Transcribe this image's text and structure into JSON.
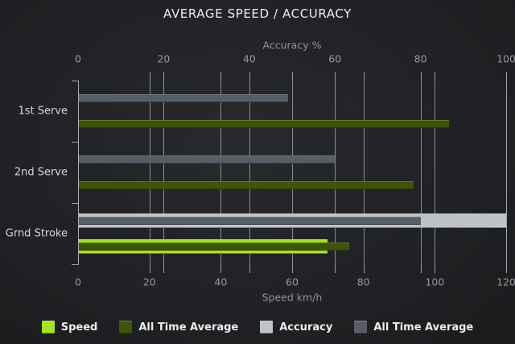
{
  "title": "AVERAGE SPEED / ACCURACY",
  "chart_data": {
    "type": "bar",
    "orientation": "horizontal",
    "title": "AVERAGE SPEED / ACCURACY",
    "categories": [
      "1st Serve",
      "2nd Serve",
      "Grnd Stroke"
    ],
    "axes": {
      "top": {
        "label": "Accuracy %",
        "min": 0,
        "max": 100,
        "ticks": [
          0,
          20,
          40,
          60,
          80,
          100
        ]
      },
      "bottom": {
        "label": "Speed km/h",
        "min": 0,
        "max": 120,
        "ticks": [
          0,
          20,
          40,
          60,
          80,
          100,
          120
        ]
      }
    },
    "series": [
      {
        "name": "Speed",
        "axis": "bottom",
        "style": "current",
        "color": "#a4e51b",
        "values": [
          0,
          0,
          70
        ]
      },
      {
        "name": "All Time Average",
        "axis": "bottom",
        "style": "average",
        "color": "#3d5606",
        "values": [
          104,
          94,
          76
        ]
      },
      {
        "name": "Accuracy",
        "axis": "top",
        "style": "current",
        "color": "#bdc3c6",
        "values": [
          0,
          0,
          100
        ]
      },
      {
        "name": "All Time Average",
        "axis": "top",
        "style": "average",
        "color": "#565e68",
        "values": [
          49,
          60,
          80
        ]
      }
    ],
    "legend": [
      "Speed",
      "All Time Average",
      "Accuracy",
      "All Time Average"
    ],
    "legend_position": "bottom",
    "grid": true
  },
  "colors": {
    "background": "#212225",
    "speed_bar": "#a4e51b",
    "speed_avg_bar": "#3d5606",
    "accuracy_bar": "#bdc3c6",
    "accuracy_avg_bar": "#565e68",
    "grid": "#b2b7bb",
    "text_primary": "#ededed",
    "text_secondary": "#97999c"
  }
}
